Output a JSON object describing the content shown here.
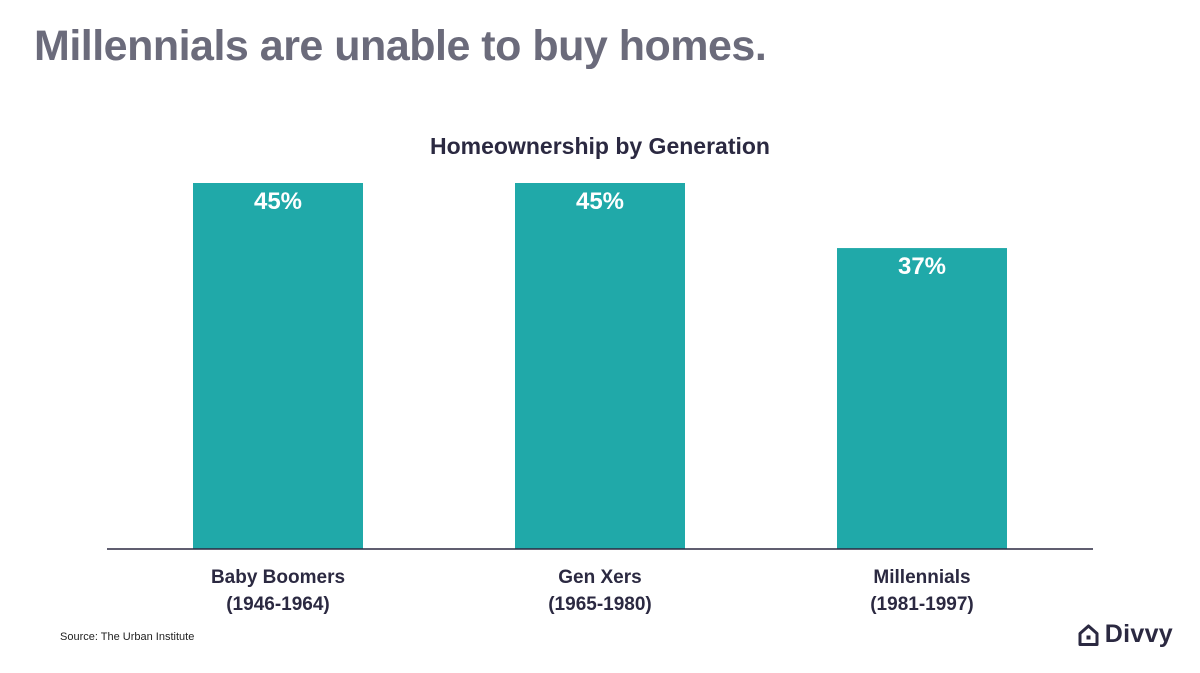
{
  "page": {
    "headline": "Millennials are unable to buy homes.",
    "source": "Source: The Urban Institute",
    "brand": {
      "name": "Divvy",
      "icon": "house-logo-icon"
    }
  },
  "colors": {
    "bar": "#20a9a9",
    "axis": "#2b2941",
    "headline": "#6b6b7b",
    "text": "#2b2941"
  },
  "chart_data": {
    "type": "bar",
    "title": "Homeownership by Generation",
    "categories": [
      [
        "Baby Boomers",
        "(1946-1964)"
      ],
      [
        "Gen Xers",
        "(1965-1980)"
      ],
      [
        "Millennials",
        "(1981-1997)"
      ]
    ],
    "values": [
      45,
      45,
      37
    ],
    "data_labels": [
      "45%",
      "45%",
      "37%"
    ],
    "unit": "%",
    "ylim": [
      0,
      45
    ],
    "grid": false,
    "legend": "none",
    "xlabel": "",
    "ylabel": ""
  }
}
